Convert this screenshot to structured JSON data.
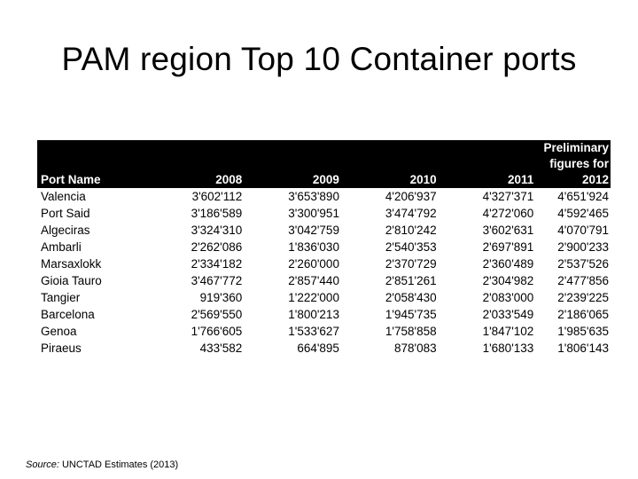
{
  "title": "PAM region Top 10 Container ports",
  "table": {
    "headers": [
      "Port Name",
      "2008",
      "2009",
      "2010",
      "2011"
    ],
    "last_header_lines": [
      "Preliminary",
      "figures for",
      "2012"
    ],
    "rows": [
      [
        "Valencia",
        "3'602'112",
        "3'653'890",
        "4'206'937",
        "4'327'371",
        "4'651'924"
      ],
      [
        "Port Said",
        "3'186'589",
        "3'300'951",
        "3'474'792",
        "4'272'060",
        "4'592'465"
      ],
      [
        "Algeciras",
        "3'324'310",
        "3'042'759",
        "2'810'242",
        "3'602'631",
        "4'070'791"
      ],
      [
        "Ambarli",
        "2'262'086",
        "1'836'030",
        "2'540'353",
        "2'697'891",
        "2'900'233"
      ],
      [
        "Marsaxlokk",
        "2'334'182",
        "2'260'000",
        "2'370'729",
        "2'360'489",
        "2'537'526"
      ],
      [
        "Gioia Tauro",
        "3'467'772",
        "2'857'440",
        "2'851'261",
        "2'304'982",
        "2'477'856"
      ],
      [
        "Tangier",
        "919'360",
        "1'222'000",
        "2'058'430",
        "2'083'000",
        "2'239'225"
      ],
      [
        "Barcelona",
        "2'569'550",
        "1'800'213",
        "1'945'735",
        "2'033'549",
        "2'186'065"
      ],
      [
        "Genoa",
        "1'766'605",
        "1'533'627",
        "1'758'858",
        "1'847'102",
        "1'985'635"
      ],
      [
        "Piraeus",
        "433'582",
        "664'895",
        "878'083",
        "1'680'133",
        "1'806'143"
      ]
    ]
  },
  "source": {
    "label": "Source:",
    "text": " UNCTAD Estimates (2013)"
  }
}
